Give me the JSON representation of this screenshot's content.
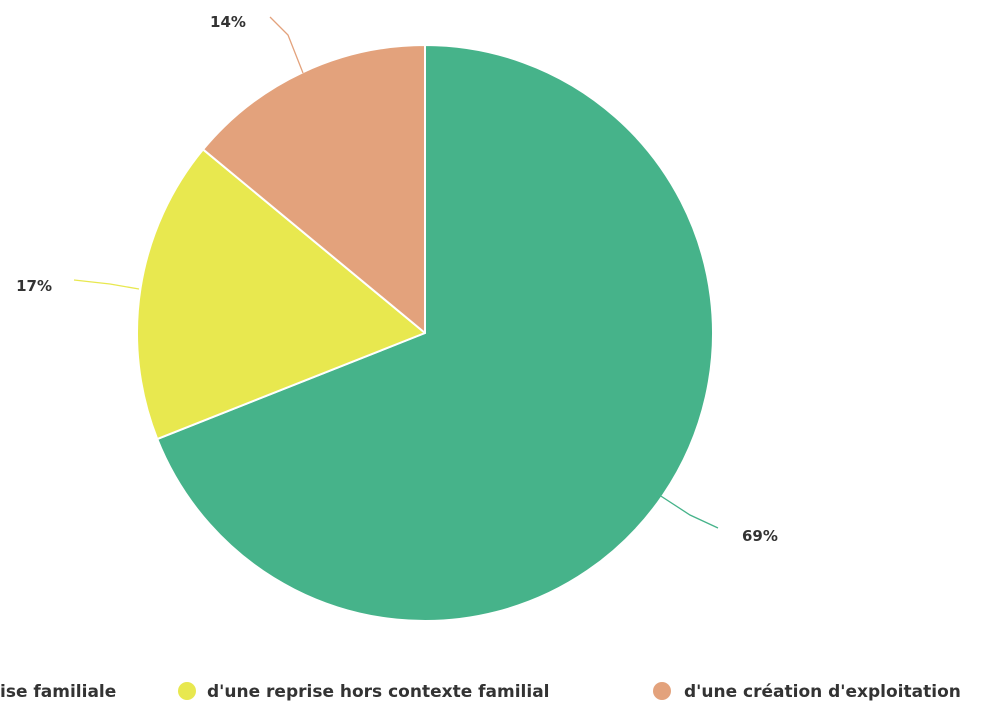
{
  "chart_data": {
    "type": "pie",
    "title": "",
    "legend_position": "bottom",
    "slices": [
      {
        "name": "d'une reprise familiale",
        "value": 69,
        "label": "69%",
        "color": "#46b38a"
      },
      {
        "name": "d'une reprise hors contexte familial",
        "value": 17,
        "label": "17%",
        "color": "#e8e84f"
      },
      {
        "name": "d'une création d'exploitation",
        "value": 14,
        "label": "14%",
        "color": "#e3a27c"
      }
    ],
    "legend": [
      {
        "name": "d'une reprise familiale",
        "visible_text": "ise familiale",
        "color": "#46b38a"
      },
      {
        "name": "d'une reprise hors contexte familial",
        "visible_text": "d'une reprise hors contexte familial",
        "color": "#e8e84f"
      },
      {
        "name": "d'une création d'exploitation",
        "visible_text": "d'une création d'exploitation",
        "color": "#e3a27c"
      }
    ]
  }
}
